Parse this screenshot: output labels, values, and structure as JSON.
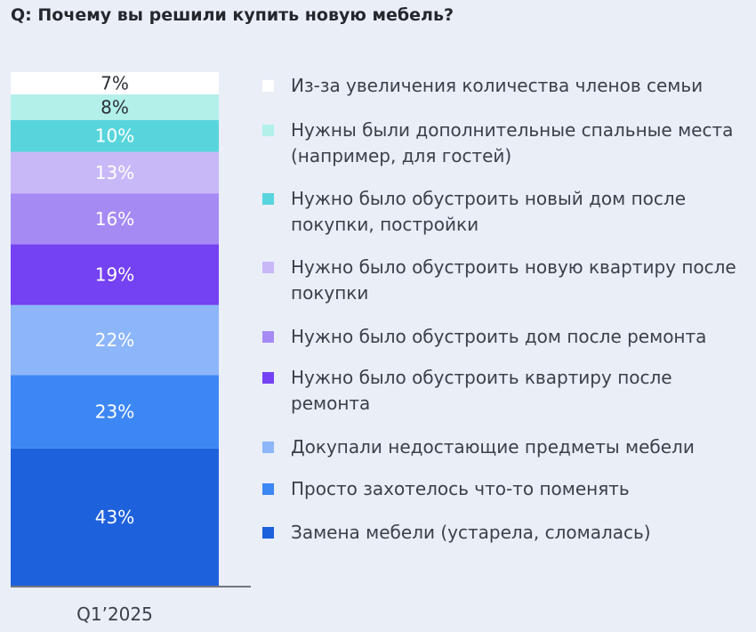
{
  "title": "Q: Почему вы решили купить новую мебель?",
  "chart_data": {
    "type": "bar",
    "stacked": true,
    "categories": [
      "Q1’2025"
    ],
    "series": [
      {
        "name": "Замена мебели (устарела, сломалась)",
        "values": [
          43
        ],
        "label": "43%",
        "color": "#1e61dc"
      },
      {
        "name": "Просто захотелось что-то поменять",
        "values": [
          23
        ],
        "label": "23%",
        "color": "#3d87f5"
      },
      {
        "name": "Докупали недостающие предметы мебели",
        "values": [
          22
        ],
        "label": "22%",
        "color": "#8cb6f9"
      },
      {
        "name": "Нужно было обустроить квартиру после ремонта",
        "values": [
          19
        ],
        "label": "19%",
        "color": "#7441f3"
      },
      {
        "name": "Нужно было обустроить дом после ремонта",
        "values": [
          16
        ],
        "label": "16%",
        "color": "#a68af4"
      },
      {
        "name": "Нужно было обустроить новую квартиру после покупки",
        "values": [
          13
        ],
        "label": "13%",
        "color": "#c9b8f7"
      },
      {
        "name": "Нужно было обустроить новый дом после покупки, постройки",
        "values": [
          10
        ],
        "label": "10%",
        "color": "#58d5dc"
      },
      {
        "name": "Нужны были дополнительные спальные места (например, для гостей)",
        "values": [
          8
        ],
        "label": "8%",
        "color": "#b3f0ea"
      },
      {
        "name": "Из-за увеличения количества членов семьи",
        "values": [
          7
        ],
        "label": "7%",
        "color": "#ffffff"
      }
    ],
    "legend_order": [
      8,
      7,
      6,
      5,
      4,
      3,
      2,
      1,
      0
    ],
    "xlabel": "",
    "ylabel": "",
    "legend": "right"
  }
}
